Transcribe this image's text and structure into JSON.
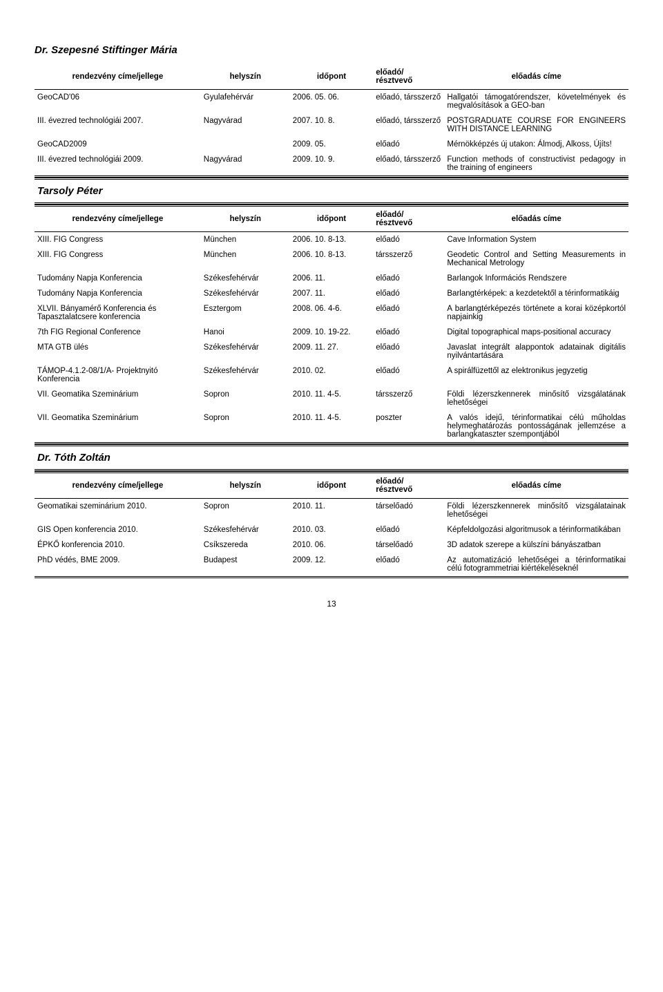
{
  "sections": [
    {
      "title": "Dr. Szepesné Stiftinger Mária",
      "headers": [
        "rendezvény címe/jellege",
        "helyszín",
        "időpont",
        "előadó/\nrésztvevő",
        "előadás címe"
      ],
      "rows": [
        [
          "GeoCAD'06",
          "Gyulafehérvár",
          "2006. 05. 06.",
          "előadó, társszerző",
          "Hallgatói támogatórendszer, követelmények és megvalósítások a GEO-ban"
        ],
        [
          "III. évezred technológiái 2007.",
          "Nagyvárad",
          "2007. 10. 8.",
          "előadó, társszerző",
          "POSTGRADUATE COURSE FOR ENGINEERS WITH DISTANCE LEARNING"
        ],
        [
          "GeoCAD2009",
          "",
          "2009. 05.",
          "előadó",
          "Mérnökképzés új utakon: Álmodj, Alkoss, Újíts!"
        ],
        [
          "III. évezred technológiái 2009.",
          "Nagyvárad",
          "2009. 10. 9.",
          "előadó, társszerző",
          "Function methods of constructivist pedagogy in the training of engineers"
        ]
      ]
    },
    {
      "title": "Tarsoly Péter",
      "headers": [
        "rendezvény címe/jellege",
        "helyszín",
        "időpont",
        "előadó/\nrésztvevő",
        "előadás címe"
      ],
      "rows": [
        [
          "XIII. FIG Congress",
          "München",
          "2006. 10. 8-13.",
          "előadó",
          "Cave Information System"
        ],
        [
          "XIII. FIG Congress",
          "München",
          "2006. 10. 8-13.",
          "társszerző",
          "Geodetic Control and Setting Measurements in Mechanical Metrology"
        ],
        [
          "Tudomány Napja Konferencia",
          "Székesfehérvár",
          "2006. 11.",
          "előadó",
          "Barlangok Információs Rendszere"
        ],
        [
          "Tudomány Napja Konferencia",
          "Székesfehérvár",
          "2007. 11.",
          "előadó",
          "Barlangtérképek: a kezdetektől a térinformatikáig"
        ],
        [
          "XLVII. Bányamérő Konferencia és Tapasztalatcsere konferencia",
          "Esztergom",
          "2008. 06. 4-6.",
          "előadó",
          "A barlangtérképezés története a korai középkortól napjainkig"
        ],
        [
          "7th FIG Regional Conference",
          "Hanoi",
          "2009. 10. 19-22.",
          "előadó",
          "Digital topographical maps-positional accuracy"
        ],
        [
          "MTA GTB ülés",
          "Székesfehérvár",
          "2009. 11. 27.",
          "előadó",
          "Javaslat integrált alappontok adatainak digitális nyilvántartására"
        ],
        [
          "TÁMOP-4.1.2-08/1/A- Projektnyitó Konferencia",
          "Székesfehérvár",
          "2010. 02.",
          "előadó",
          "A spirálfüzettől az elektronikus jegyzetig"
        ],
        [
          "VII. Geomatika Szeminárium",
          "Sopron",
          "2010. 11. 4-5.",
          "társszerző",
          "Földi lézerszkennerek minősítő vizsgálatának lehetőségei"
        ],
        [
          "VII. Geomatika Szeminárium",
          "Sopron",
          "2010. 11. 4-5.",
          "poszter",
          "A valós idejű, térinformatikai célú műholdas helymeghatározás pontosságának jellemzése a barlangkataszter szempontjából"
        ]
      ]
    },
    {
      "title": "Dr. Tóth Zoltán",
      "headers": [
        "rendezvény címe/jellege",
        "helyszín",
        "időpont",
        "előadó/\nrésztvevő",
        "előadás címe"
      ],
      "rows": [
        [
          "Geomatikai szeminárium 2010.",
          "Sopron",
          "2010. 11.",
          "társelőadó",
          "Földi lézerszkennerek minősítő vizsgálatainak lehetőségei"
        ],
        [
          "GIS Open konferencia 2010.",
          "Székesfehérvár",
          "2010. 03.",
          "előadó",
          "Képfeldolgozási algoritmusok a térinformatikában"
        ],
        [
          "ÉPKŐ konferencia 2010.",
          "Csíkszereda",
          "2010. 06.",
          "társelőadó",
          "3D adatok szerepe a külszíni bányászatban"
        ],
        [
          "PhD védés, BME 2009.",
          "Budapest",
          "2009. 12.",
          "előadó",
          "Az automatizáció lehetőségei a térinformatikai célú fotogrammetriai kiértékeléseknél"
        ]
      ]
    }
  ],
  "page_number": "13"
}
